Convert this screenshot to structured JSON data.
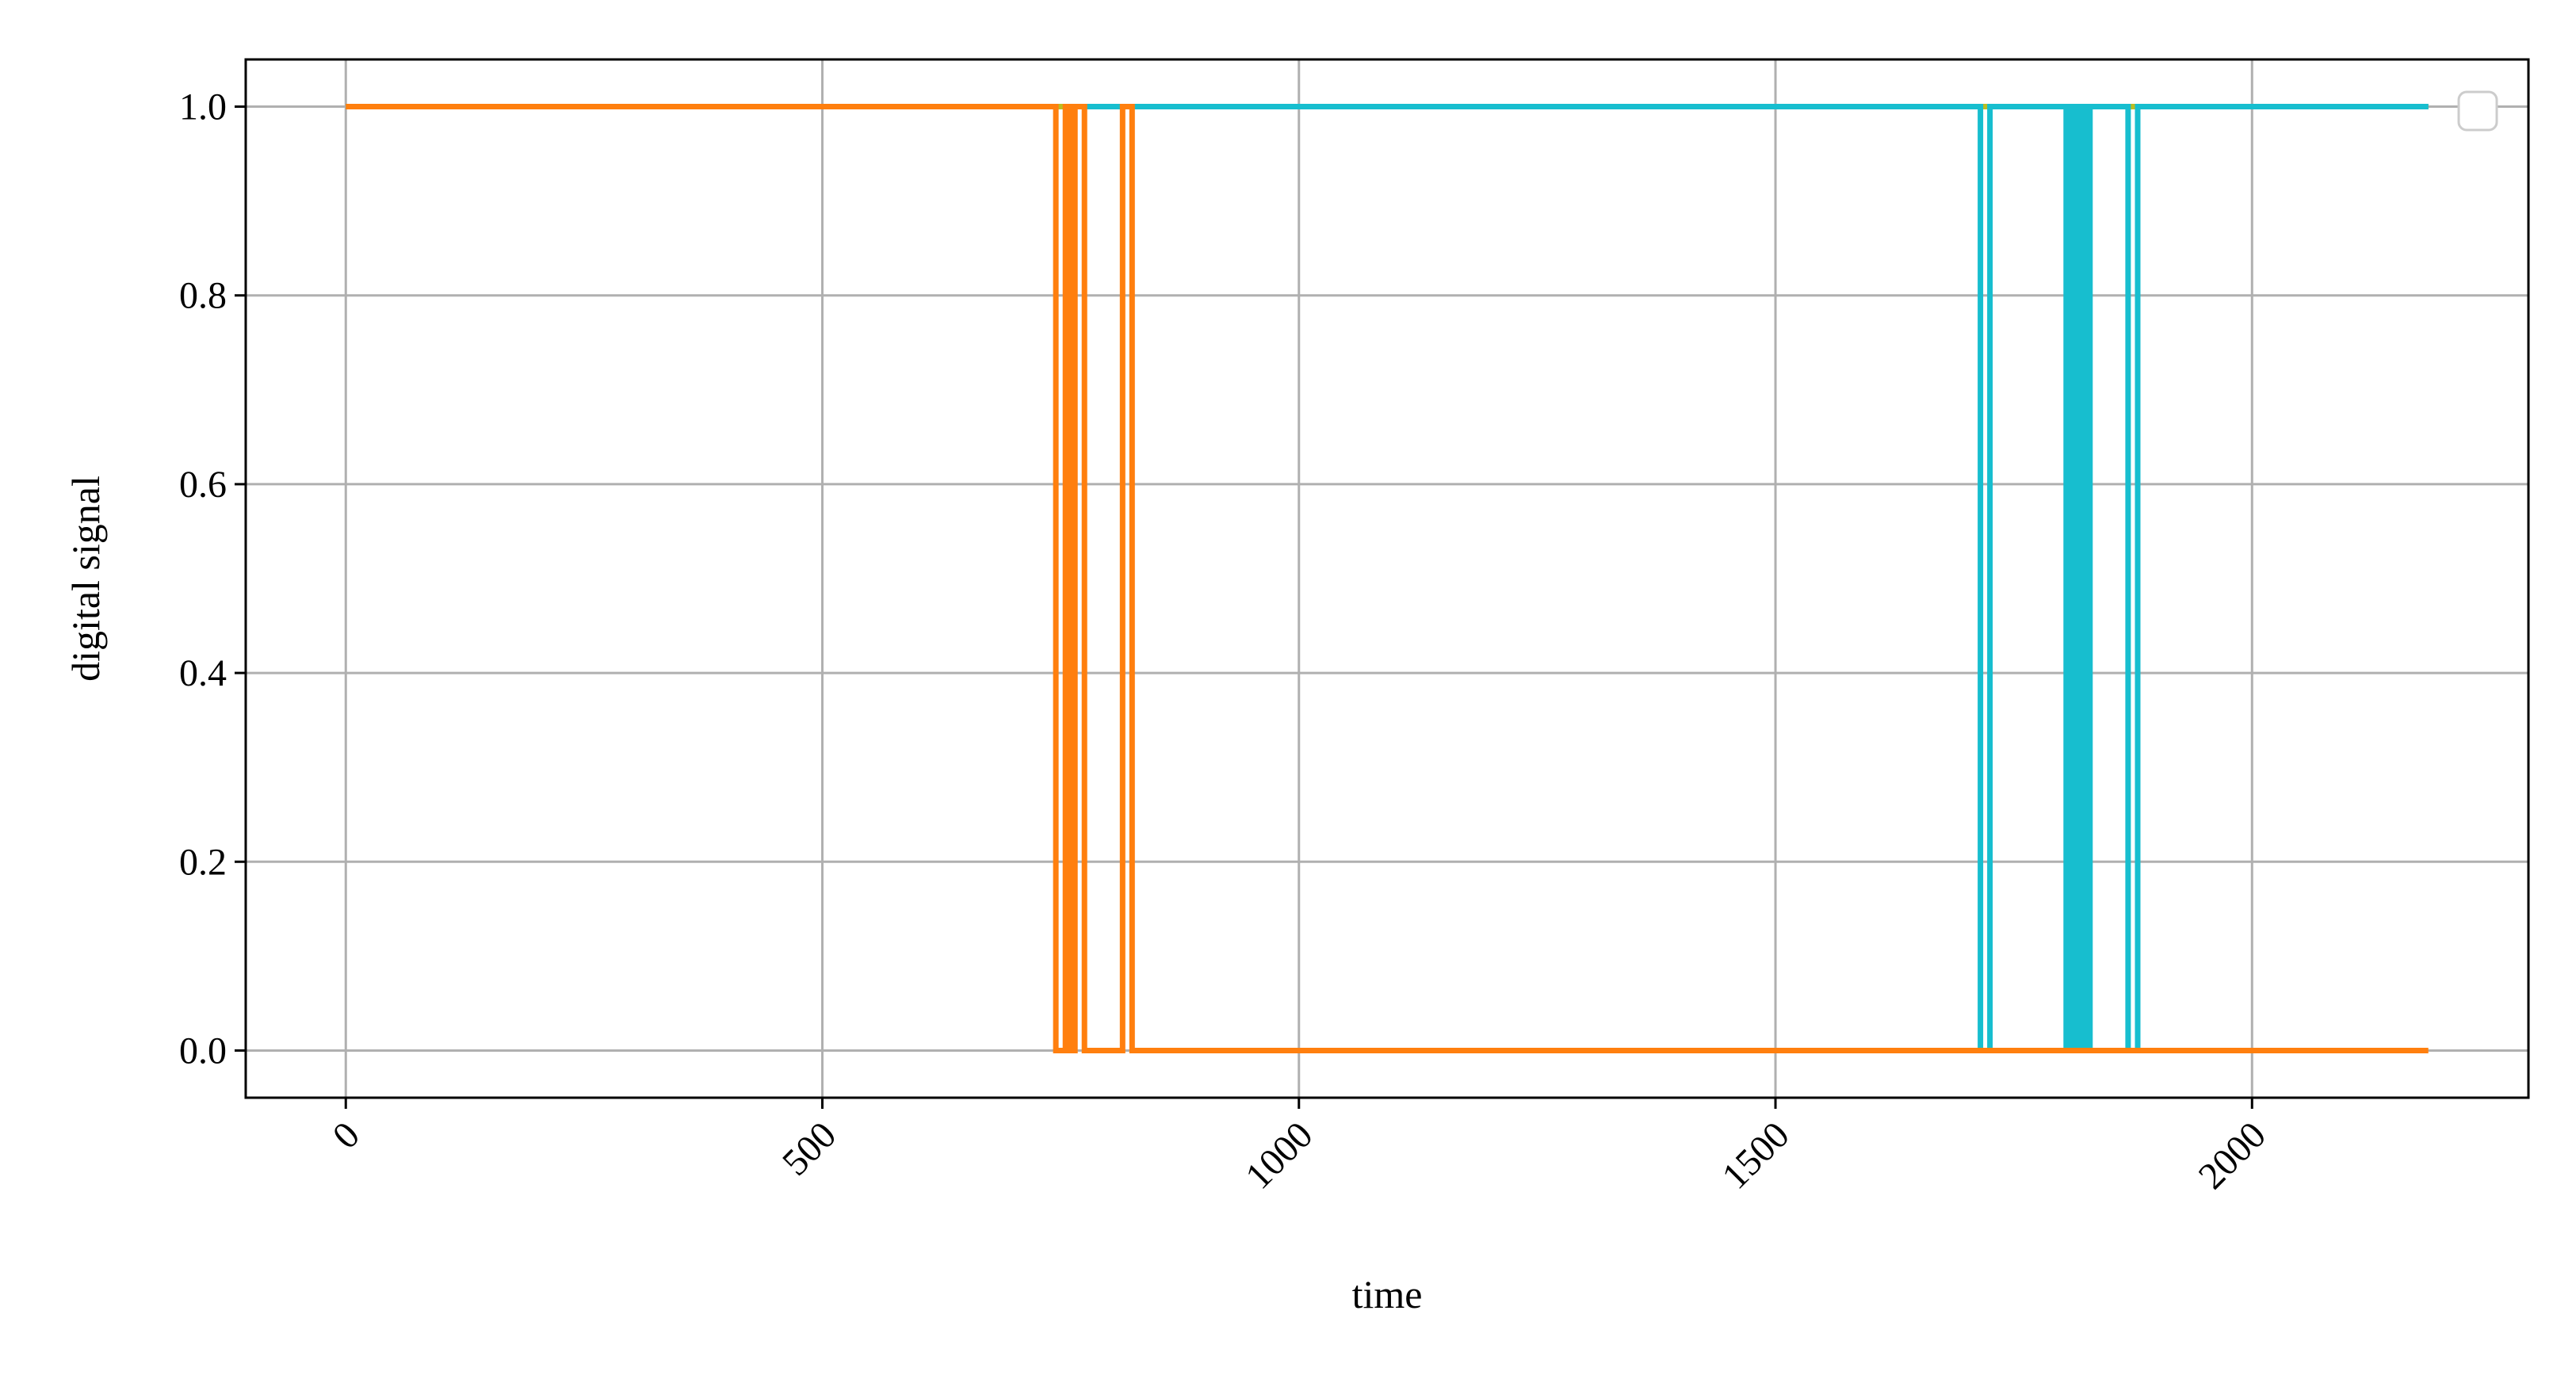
{
  "chart_data": {
    "type": "line",
    "title": "",
    "xlabel": "time",
    "ylabel": "digital signal",
    "xlim": [
      -105,
      2290
    ],
    "ylim": [
      -0.05,
      1.05
    ],
    "x_ticks": [
      0,
      500,
      1000,
      1500,
      2000
    ],
    "y_ticks": [
      0.0,
      0.2,
      0.4,
      0.6,
      0.8,
      1.0
    ],
    "x_tick_labels": [
      "0",
      "500",
      "1000",
      "1500",
      "2000"
    ],
    "y_tick_labels": [
      "0.0",
      "0.2",
      "0.4",
      "0.6",
      "0.8",
      "1.0"
    ],
    "grid": true,
    "legend": {
      "location": "upper right",
      "entries": []
    },
    "colors": {
      "frame": "#000000",
      "grid": "#b0b0b0",
      "legend_border": "#cccccc"
    },
    "series": [
      {
        "color": "#1f77b4",
        "x": [
          0,
          745,
          750,
          2185
        ],
        "y": [
          1,
          1,
          1,
          1
        ]
      },
      {
        "color": "#bcbd22",
        "x": [
          0,
          745,
          750,
          820,
          1720,
          1880,
          2185
        ],
        "y": [
          1,
          1,
          1,
          1,
          1,
          1,
          1
        ]
      },
      {
        "color": "#17becf",
        "x": [
          760,
          1715,
          1715,
          1725,
          1725,
          1805,
          1805,
          1810,
          1810,
          1815,
          1815,
          1820,
          1820,
          1825,
          1825,
          1830,
          1830,
          1870,
          1870,
          1880,
          1880,
          2185
        ],
        "y": [
          1,
          1,
          0,
          0,
          1,
          1,
          0,
          0,
          1,
          1,
          0,
          0,
          1,
          1,
          0,
          0,
          1,
          1,
          0,
          0,
          1,
          1
        ]
      },
      {
        "color": "#ff7f0e",
        "x": [
          0,
          745,
          745,
          755,
          755,
          760,
          760,
          765,
          765,
          775,
          775,
          815,
          815,
          825,
          825,
          2185
        ],
        "y": [
          1,
          1,
          0,
          0,
          1,
          1,
          0,
          0,
          1,
          1,
          0,
          0,
          1,
          1,
          0,
          0
        ]
      }
    ]
  }
}
